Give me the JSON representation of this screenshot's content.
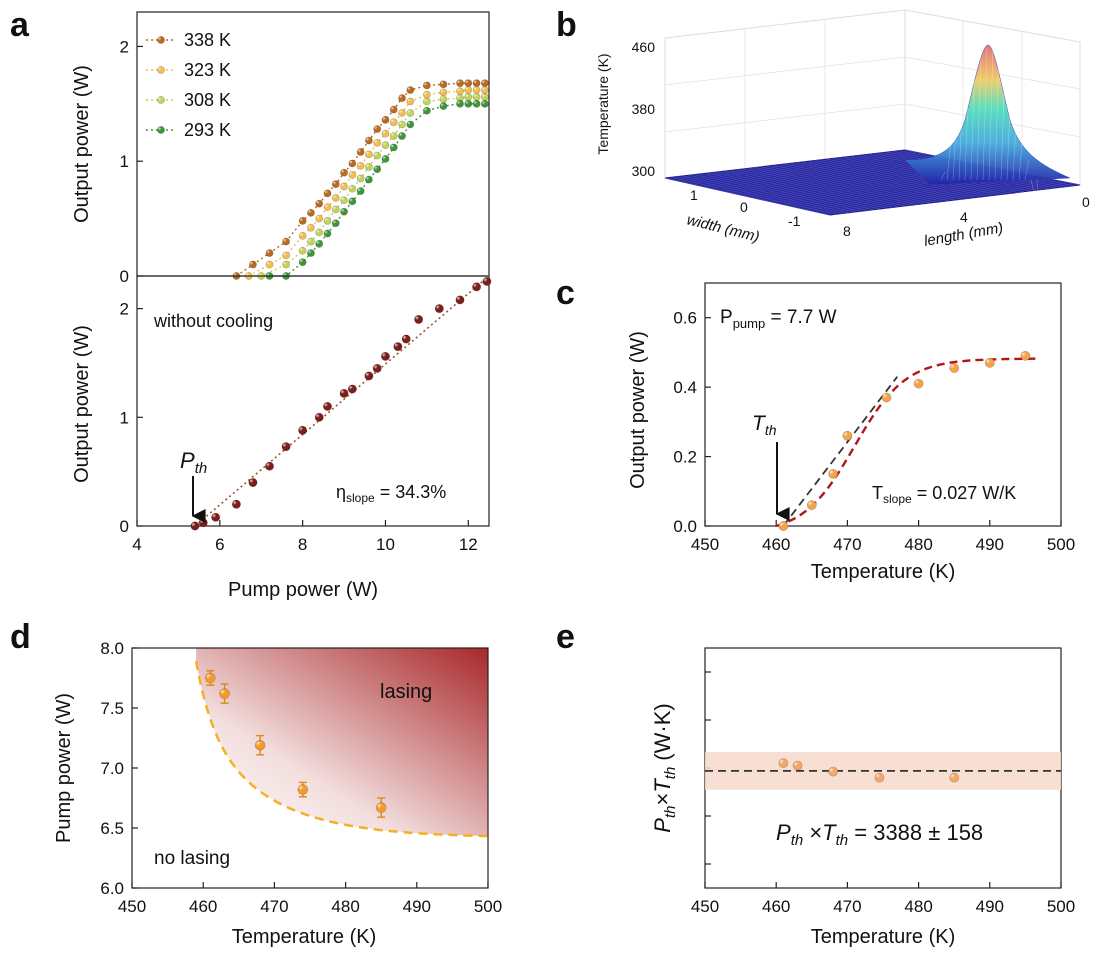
{
  "panels": {
    "a": {
      "letter": "a"
    },
    "b": {
      "letter": "b"
    },
    "c": {
      "letter": "c"
    },
    "d": {
      "letter": "d"
    },
    "e": {
      "letter": "e"
    }
  },
  "chart_data": [
    {
      "id": "a_top",
      "type": "line",
      "ylabel": "Output power (W)",
      "xlim": [
        4,
        12.5
      ],
      "ylim": [
        0,
        2.3
      ],
      "yticks": [
        0,
        1,
        2
      ],
      "series": [
        {
          "name": "338 K",
          "color": "#b96a1f",
          "x": [
            6.4,
            6.8,
            7.2,
            7.6,
            8.0,
            8.2,
            8.4,
            8.6,
            8.8,
            9.0,
            9.2,
            9.4,
            9.6,
            9.8,
            10.0,
            10.2,
            10.4,
            10.6,
            11.0,
            11.4,
            11.8,
            12.0,
            12.2,
            12.4
          ],
          "y": [
            0.0,
            0.1,
            0.2,
            0.3,
            0.48,
            0.55,
            0.63,
            0.72,
            0.8,
            0.9,
            0.98,
            1.08,
            1.18,
            1.28,
            1.36,
            1.45,
            1.55,
            1.62,
            1.66,
            1.67,
            1.68,
            1.68,
            1.68,
            1.68
          ]
        },
        {
          "name": "323 K",
          "color": "#f2bd53",
          "x": [
            6.7,
            7.2,
            7.6,
            8.0,
            8.2,
            8.4,
            8.6,
            8.8,
            9.0,
            9.2,
            9.4,
            9.6,
            9.8,
            10.0,
            10.2,
            10.4,
            10.6,
            11.0,
            11.4,
            11.8,
            12.0,
            12.2,
            12.4
          ],
          "y": [
            0.0,
            0.1,
            0.18,
            0.35,
            0.42,
            0.5,
            0.6,
            0.68,
            0.78,
            0.88,
            0.96,
            1.06,
            1.16,
            1.24,
            1.34,
            1.42,
            1.52,
            1.58,
            1.6,
            1.61,
            1.62,
            1.62,
            1.62
          ]
        },
        {
          "name": "308 K",
          "color": "#c3d25a",
          "x": [
            7.0,
            7.6,
            8.0,
            8.2,
            8.4,
            8.6,
            8.8,
            9.0,
            9.2,
            9.4,
            9.6,
            9.8,
            10.0,
            10.2,
            10.4,
            10.6,
            11.0,
            11.4,
            11.8,
            12.0,
            12.2,
            12.4
          ],
          "y": [
            0.0,
            0.1,
            0.22,
            0.3,
            0.38,
            0.48,
            0.58,
            0.66,
            0.76,
            0.85,
            0.95,
            1.05,
            1.14,
            1.22,
            1.32,
            1.42,
            1.52,
            1.54,
            1.55,
            1.56,
            1.56,
            1.56
          ]
        },
        {
          "name": "293 K",
          "color": "#3f9638",
          "x": [
            7.2,
            7.6,
            8.0,
            8.2,
            8.4,
            8.6,
            8.8,
            9.0,
            9.2,
            9.4,
            9.6,
            9.8,
            10.0,
            10.2,
            10.4,
            10.6,
            11.0,
            11.4,
            11.8,
            12.0,
            12.2,
            12.4
          ],
          "y": [
            0.0,
            0.0,
            0.12,
            0.2,
            0.28,
            0.37,
            0.46,
            0.56,
            0.65,
            0.74,
            0.84,
            0.93,
            1.02,
            1.12,
            1.22,
            1.32,
            1.44,
            1.48,
            1.5,
            1.5,
            1.5,
            1.5
          ]
        }
      ]
    },
    {
      "id": "a_bottom",
      "type": "scatter",
      "xlabel": "Pump power (W)",
      "ylabel": "Output power (W)",
      "xlim": [
        4,
        12.5
      ],
      "ylim": [
        0,
        2.3
      ],
      "xticks": [
        4,
        6,
        8,
        10,
        12
      ],
      "yticks": [
        0,
        1,
        2
      ],
      "annotation": "without cooling",
      "pth_label": "P",
      "pth_sub": "th",
      "pth_x": 5.4,
      "slope_label": "η",
      "slope_sub": "slope",
      "slope_value": " = 34.3%",
      "color": "#7a1f1a",
      "fit_line": {
        "x": [
          5.4,
          12.5
        ],
        "y": [
          0.0,
          2.3
        ]
      },
      "x": [
        5.4,
        5.6,
        5.9,
        6.4,
        6.8,
        7.2,
        7.6,
        8.0,
        8.4,
        8.6,
        9.0,
        9.2,
        9.6,
        9.8,
        10.0,
        10.3,
        10.5,
        10.8,
        11.3,
        11.8,
        12.2,
        12.45
      ],
      "y": [
        0.0,
        0.03,
        0.08,
        0.2,
        0.4,
        0.55,
        0.73,
        0.88,
        1.0,
        1.1,
        1.22,
        1.26,
        1.38,
        1.45,
        1.56,
        1.65,
        1.72,
        1.9,
        2.0,
        2.08,
        2.2,
        2.25
      ]
    },
    {
      "id": "b",
      "type": "surface3d",
      "zlabel": "Temperature (K)",
      "zticks": [
        "460",
        "380",
        "300"
      ],
      "xlabel": "width (mm)",
      "xticks": [
        "1",
        "0",
        "-1"
      ],
      "ylabel": "length (mm)",
      "yticks": [
        "8",
        "4",
        "0"
      ]
    },
    {
      "id": "c",
      "type": "scatter",
      "xlabel": "Temperature (K)",
      "ylabel": "Output power (W)",
      "xlim": [
        450,
        500
      ],
      "ylim": [
        0,
        0.7
      ],
      "xticks": [
        450,
        460,
        470,
        480,
        490,
        500
      ],
      "yticks": [
        0.0,
        0.2,
        0.4,
        0.6
      ],
      "ppump_label": "P",
      "ppump_sub": "pump",
      "ppump_value": " = 7.7 W",
      "tth_label": "T",
      "tth_sub": "th",
      "tth_x": 461,
      "tslope_label": "T",
      "tslope_sub": "slope",
      "tslope_value": " = 0.027 W/K",
      "color": "#f5a34a",
      "x": [
        461,
        465,
        468,
        470,
        475.5,
        480,
        485,
        490,
        495
      ],
      "y": [
        0.0,
        0.06,
        0.15,
        0.26,
        0.37,
        0.41,
        0.455,
        0.47,
        0.49
      ]
    },
    {
      "id": "d",
      "type": "scatter",
      "xlabel": "Temperature (K)",
      "ylabel": "Pump power (W)",
      "xlim": [
        450,
        500
      ],
      "ylim": [
        6.0,
        8.0
      ],
      "xticks": [
        450,
        460,
        470,
        480,
        490,
        500
      ],
      "yticks": [
        "6.0",
        "6.5",
        "7.0",
        "7.5",
        "8.0"
      ],
      "region_above": "lasing",
      "region_below": "no lasing",
      "color": "#f39a2a",
      "x": [
        461,
        463,
        468,
        474,
        485
      ],
      "y": [
        7.75,
        7.62,
        7.19,
        6.82,
        6.67
      ],
      "yerr": [
        0.06,
        0.08,
        0.08,
        0.06,
        0.08
      ]
    },
    {
      "id": "e",
      "type": "scatter",
      "xlabel": "Temperature (K)",
      "ylabel_p": "P",
      "ylabel_sub_th": "th",
      "ylabel_times": "×",
      "ylabel_t": "T",
      "ylabel_unit": "(W·K)",
      "xlim": [
        450,
        500
      ],
      "xticks": [
        450,
        460,
        470,
        480,
        490,
        500
      ],
      "formula_p": "P",
      "formula_sub_th": "th",
      "formula_times": " ×",
      "formula_t": "T",
      "formula_value": " = 3388 ± 158",
      "mean": 3388,
      "band": 158,
      "color": "#f4a868",
      "x": [
        461,
        463,
        468,
        474.5,
        485
      ],
      "y": [
        3420,
        3410,
        3385,
        3360,
        3360
      ]
    }
  ]
}
